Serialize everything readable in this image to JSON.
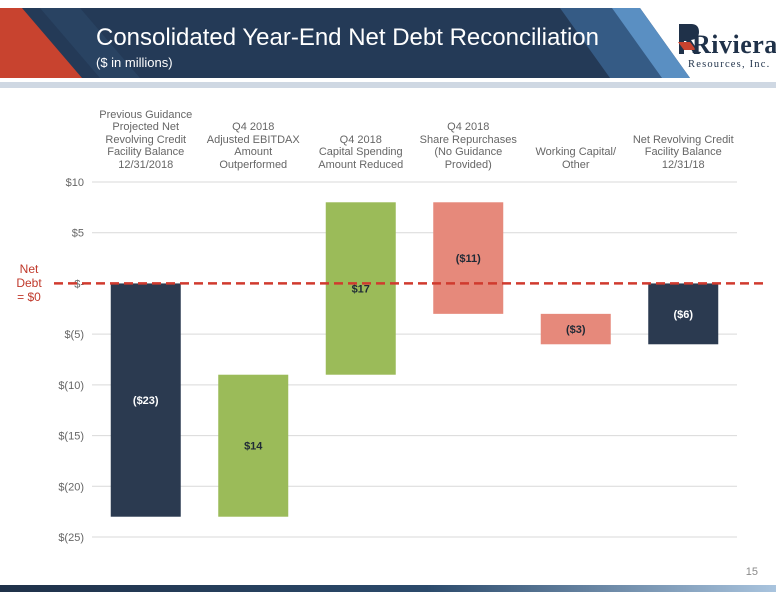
{
  "header": {
    "title": "Consolidated Year-End Net Debt Reconciliation",
    "subtitle": "($ in millions)"
  },
  "logo": {
    "name": "Riviera",
    "tagline": "Resources, Inc."
  },
  "page_number": "15",
  "net_debt_label": "Net Debt\n= $0",
  "colors": {
    "header_dark": "#1f3149",
    "accent_red": "#c0392b",
    "bar_dark": "#2b3a50",
    "bar_green": "#9bbb59",
    "bar_salmon": "#e6897b",
    "zero_line": "#d03a2e"
  },
  "chart_data": {
    "type": "bar",
    "subtype": "waterfall",
    "categories": [
      "Previous Guidance\nProjected Net\nRevolving Credit\nFacility Balance\n12/31/2018",
      "Q4 2018\nAdjusted EBITDAX\nAmount\nOutperformed",
      "Q4 2018\nCapital Spending\nAmount Reduced",
      "Q4 2018\nShare Repurchases\n(No Guidance\nProvided)",
      "Working Capital/\nOther",
      "Net Revolving Credit\nFacility Balance\n12/31/18"
    ],
    "bars": [
      {
        "start": 0,
        "end": -23,
        "label": "($23)",
        "color": "dark"
      },
      {
        "start": -23,
        "end": -9,
        "label": "$14",
        "color": "green"
      },
      {
        "start": -9,
        "end": 8,
        "label": "$17",
        "color": "green"
      },
      {
        "start": 8,
        "end": -3,
        "label": "($11)",
        "color": "salmon"
      },
      {
        "start": -3,
        "end": -6,
        "label": "($3)",
        "color": "salmon"
      },
      {
        "start": 0,
        "end": -6,
        "label": "($6)",
        "color": "dark"
      }
    ],
    "yticks": [
      10,
      5,
      0,
      -5,
      -10,
      -15,
      -20,
      -25
    ],
    "ytick_labels": [
      "$10",
      "$5",
      "$-",
      "$(5)",
      "$(10)",
      "$(15)",
      "$(20)",
      "$(25)"
    ],
    "ylim": [
      -25,
      10
    ],
    "grid": true,
    "reference_line": {
      "value": 0,
      "style": "dashed"
    }
  }
}
